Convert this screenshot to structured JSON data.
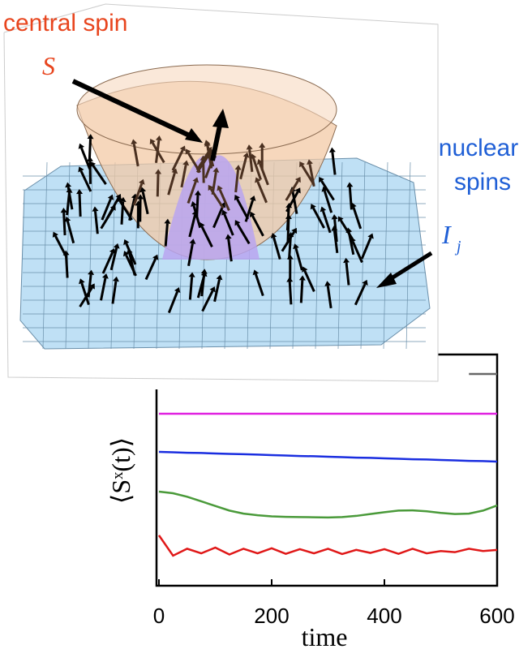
{
  "annotations": {
    "central": "central spin",
    "S": "S⃗",
    "nuclear": [
      "nuclear",
      "spins"
    ],
    "I": "I⃗",
    "I_sub": "j"
  },
  "chart_data": {
    "type": "line",
    "xlabel": "time",
    "ylabel": "⟨Sˣ(t)⟩",
    "x": [
      0,
      25,
      50,
      75,
      100,
      125,
      150,
      175,
      200,
      225,
      250,
      275,
      300,
      325,
      350,
      375,
      400,
      425,
      450,
      475,
      500,
      525,
      550,
      575,
      600
    ],
    "xlim": [
      0,
      600
    ],
    "xticks": [
      0,
      200,
      400,
      600
    ],
    "ylim": [
      0,
      1
    ],
    "series": [
      {
        "color": "#666666",
        "values": [
          null,
          null,
          null,
          null,
          null,
          null,
          null,
          null,
          null,
          null,
          null,
          null,
          null,
          null,
          null,
          null,
          null,
          null,
          null,
          null,
          null,
          null,
          0.916,
          0.916,
          0.916
        ]
      },
      {
        "color": "#e020e0",
        "values": [
          0.744,
          0.744,
          0.744,
          0.744,
          0.744,
          0.744,
          0.744,
          0.744,
          0.744,
          0.744,
          0.744,
          0.744,
          0.744,
          0.744,
          0.744,
          0.744,
          0.744,
          0.744,
          0.744,
          0.744,
          0.744,
          0.744,
          0.744,
          0.744,
          0.744
        ]
      },
      {
        "color": "#1a2ee0",
        "values": [
          0.579,
          0.577,
          0.575,
          0.574,
          0.572,
          0.57,
          0.569,
          0.567,
          0.565,
          0.563,
          0.561,
          0.56,
          0.558,
          0.556,
          0.554,
          0.553,
          0.551,
          0.549,
          0.547,
          0.546,
          0.544,
          0.542,
          0.54,
          0.539,
          0.537
        ]
      },
      {
        "color": "#4a9a3a",
        "values": [
          0.407,
          0.4,
          0.385,
          0.365,
          0.345,
          0.325,
          0.312,
          0.305,
          0.3,
          0.298,
          0.297,
          0.296,
          0.295,
          0.297,
          0.302,
          0.31,
          0.318,
          0.325,
          0.326,
          0.322,
          0.315,
          0.31,
          0.312,
          0.325,
          0.347
        ]
      },
      {
        "color": "#e01818",
        "values": [
          0.218,
          0.13,
          0.16,
          0.14,
          0.165,
          0.135,
          0.16,
          0.14,
          0.162,
          0.138,
          0.158,
          0.14,
          0.16,
          0.137,
          0.155,
          0.142,
          0.158,
          0.138,
          0.16,
          0.14,
          0.15,
          0.145,
          0.16,
          0.15,
          0.155
        ]
      }
    ]
  }
}
